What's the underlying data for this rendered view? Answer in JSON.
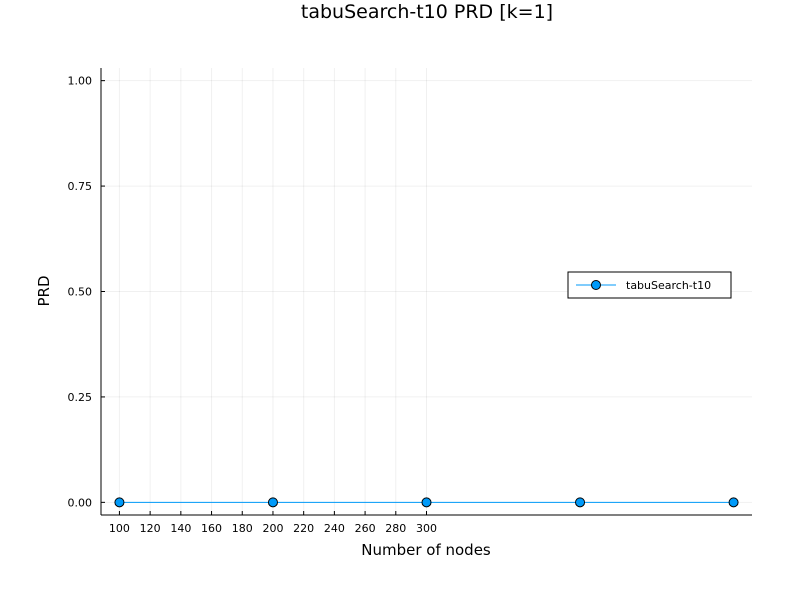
{
  "chart_data": {
    "type": "line",
    "title": "tabuSearch-t10 PRD [k=1]",
    "xlabel": "Number of nodes",
    "ylabel": "PRD",
    "x_ticks": [
      100,
      120,
      140,
      160,
      180,
      200,
      220,
      240,
      260,
      280,
      300
    ],
    "x_tick_labels": [
      "100",
      "120",
      "140",
      "160",
      "180",
      "200",
      "220",
      "240",
      "260",
      "280",
      "300"
    ],
    "y_ticks": [
      0.0,
      0.25,
      0.5,
      0.75,
      1.0
    ],
    "y_tick_labels": [
      "0.00",
      "0.25",
      "0.50",
      "0.75",
      "1.00"
    ],
    "xlim": [
      88,
      512
    ],
    "ylim": [
      -0.03,
      1.03
    ],
    "grid": true,
    "legend_position": "right",
    "series": [
      {
        "name": "tabuSearch-t10",
        "color": "#009af9",
        "marker": "circle",
        "x": [
          100,
          200,
          300,
          400,
          500
        ],
        "y": [
          0,
          0,
          0,
          0,
          0
        ]
      }
    ]
  }
}
